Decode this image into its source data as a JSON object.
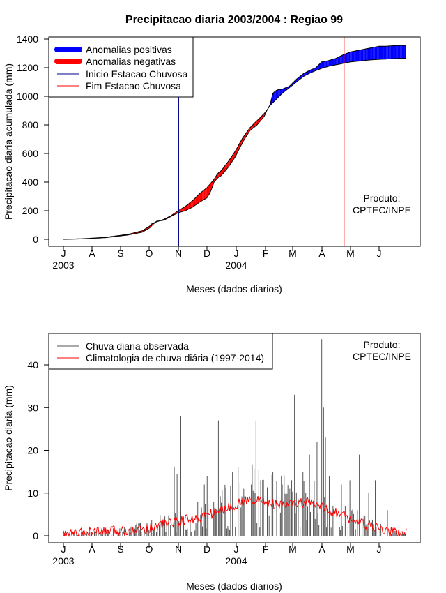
{
  "chart_data": [
    {
      "type": "area",
      "title": "Precipitacao diaria 2003/2004 : Regiao 99",
      "xlabel": "Meses (dados diarios)",
      "ylabel": "Precipitacao diaria acumulada (mm)",
      "ylim": [
        0,
        1400
      ],
      "yticks": [
        0,
        200,
        400,
        600,
        800,
        1000,
        1200,
        1400
      ],
      "month_ticks": [
        "J",
        "A",
        "S",
        "O",
        "N",
        "D",
        "J",
        "F",
        "M",
        "A",
        "M",
        "J"
      ],
      "year_labels": [
        "2003",
        "2004"
      ],
      "legend": [
        {
          "label": "Anomalias positivas",
          "color": "#0000ff"
        },
        {
          "label": "Anomalias negativas",
          "color": "#ff0000"
        },
        {
          "label": "Inicio Estacao Chuvosa",
          "color": "#00008b"
        },
        {
          "label": "Fim Estacao Chuvosa",
          "color": "#ff0000"
        }
      ],
      "note_line1": "Produto:",
      "note_line2": "CPTEC/INPE",
      "rainy_season_start_day": 122,
      "rainy_season_end_day": 297,
      "days_total": 365,
      "observed_cumulative_knots": [
        [
          0,
          0
        ],
        [
          30,
          3
        ],
        [
          60,
          12
        ],
        [
          90,
          30
        ],
        [
          110,
          50
        ],
        [
          121,
          82
        ],
        [
          123,
          95
        ],
        [
          130,
          127
        ],
        [
          140,
          133
        ],
        [
          150,
          160
        ],
        [
          160,
          185
        ],
        [
          170,
          200
        ],
        [
          180,
          225
        ],
        [
          190,
          260
        ],
        [
          200,
          290
        ],
        [
          205,
          330
        ],
        [
          210,
          400
        ],
        [
          215,
          430
        ],
        [
          220,
          445
        ],
        [
          230,
          505
        ],
        [
          240,
          580
        ],
        [
          250,
          680
        ],
        [
          260,
          760
        ],
        [
          270,
          800
        ],
        [
          280,
          860
        ],
        [
          284,
          905
        ],
        [
          288,
          940
        ],
        [
          292,
          1020
        ],
        [
          295,
          1035
        ],
        [
          298,
          1045
        ],
        [
          305,
          1050
        ],
        [
          315,
          1070
        ],
        [
          325,
          1120
        ],
        [
          335,
          1160
        ],
        [
          345,
          1185
        ],
        [
          352,
          1200
        ],
        [
          360,
          1240
        ],
        [
          370,
          1250
        ],
        [
          380,
          1265
        ],
        [
          390,
          1290
        ],
        [
          400,
          1310
        ],
        [
          410,
          1320
        ],
        [
          420,
          1330
        ],
        [
          430,
          1340
        ],
        [
          440,
          1350
        ],
        [
          450,
          1350
        ],
        [
          455,
          1352
        ],
        [
          465,
          1355
        ],
        [
          470,
          1355
        ],
        [
          478,
          1355
        ]
      ],
      "climatology_cumulative_knots": [
        [
          0,
          0
        ],
        [
          30,
          5
        ],
        [
          60,
          15
        ],
        [
          90,
          35
        ],
        [
          110,
          60
        ],
        [
          121,
          95
        ],
        [
          123,
          110
        ],
        [
          130,
          122
        ],
        [
          140,
          140
        ],
        [
          150,
          165
        ],
        [
          160,
          200
        ],
        [
          170,
          230
        ],
        [
          180,
          270
        ],
        [
          190,
          320
        ],
        [
          200,
          360
        ],
        [
          205,
          390
        ],
        [
          210,
          420
        ],
        [
          215,
          460
        ],
        [
          220,
          480
        ],
        [
          230,
          545
        ],
        [
          240,
          620
        ],
        [
          250,
          710
        ],
        [
          260,
          780
        ],
        [
          270,
          830
        ],
        [
          280,
          880
        ],
        [
          284,
          905
        ],
        [
          288,
          935
        ],
        [
          292,
          955
        ],
        [
          295,
          970
        ],
        [
          298,
          985
        ],
        [
          305,
          1020
        ],
        [
          315,
          1060
        ],
        [
          325,
          1100
        ],
        [
          335,
          1140
        ],
        [
          345,
          1165
        ],
        [
          352,
          1180
        ],
        [
          360,
          1195
        ],
        [
          370,
          1210
        ],
        [
          380,
          1220
        ],
        [
          390,
          1230
        ],
        [
          400,
          1240
        ],
        [
          410,
          1245
        ],
        [
          420,
          1250
        ],
        [
          430,
          1255
        ],
        [
          440,
          1258
        ],
        [
          450,
          1260
        ],
        [
          455,
          1262
        ],
        [
          465,
          1264
        ],
        [
          470,
          1265
        ],
        [
          478,
          1266
        ]
      ]
    },
    {
      "type": "line",
      "title": "",
      "xlabel": "Meses (dados diarios)",
      "ylabel": "Precipitacao diaria (mm)",
      "ylim": [
        0,
        45
      ],
      "yticks": [
        0,
        10,
        20,
        30,
        40
      ],
      "month_ticks": [
        "J",
        "A",
        "S",
        "O",
        "N",
        "D",
        "J",
        "F",
        "M",
        "A",
        "M",
        "J"
      ],
      "year_labels": [
        "2003",
        "2004"
      ],
      "legend": [
        {
          "label": "Chuva diaria observada",
          "color": "#555555"
        },
        {
          "label": "Climatologia de chuva diária (1997-2014)",
          "color": "#ff0000"
        }
      ],
      "note_line1": "Produto:",
      "note_line2": "CPTEC/INPE",
      "days_total": 365,
      "notable_peaks": [
        [
          86,
          1.5
        ],
        [
          118,
          16
        ],
        [
          121,
          14.5
        ],
        [
          125,
          28
        ],
        [
          143,
          8
        ],
        [
          150,
          12
        ],
        [
          153,
          14
        ],
        [
          160,
          8
        ],
        [
          165,
          27
        ],
        [
          180,
          15
        ],
        [
          186,
          16
        ],
        [
          192,
          11
        ],
        [
          200,
          12
        ],
        [
          205,
          27
        ],
        [
          210,
          13
        ],
        [
          223,
          15
        ],
        [
          233,
          12
        ],
        [
          241,
          11
        ],
        [
          246,
          33
        ],
        [
          255,
          15
        ],
        [
          262,
          19
        ],
        [
          270,
          22
        ],
        [
          275,
          46
        ],
        [
          277,
          30
        ],
        [
          279,
          23
        ],
        [
          283,
          14
        ],
        [
          296,
          12
        ],
        [
          305,
          13
        ],
        [
          315,
          19
        ],
        [
          325,
          10
        ],
        [
          332,
          13
        ],
        [
          345,
          6
        ]
      ],
      "climatology_knots": [
        [
          0,
          0.3
        ],
        [
          30,
          0.8
        ],
        [
          60,
          1.2
        ],
        [
          90,
          1.8
        ],
        [
          110,
          3
        ],
        [
          125,
          3.5
        ],
        [
          140,
          4
        ],
        [
          155,
          5
        ],
        [
          170,
          6
        ],
        [
          185,
          7.5
        ],
        [
          200,
          8.5
        ],
        [
          215,
          8
        ],
        [
          230,
          7
        ],
        [
          245,
          7.5
        ],
        [
          260,
          7.8
        ],
        [
          270,
          7
        ],
        [
          285,
          6
        ],
        [
          300,
          4.5
        ],
        [
          315,
          3
        ],
        [
          330,
          2
        ],
        [
          345,
          1
        ],
        [
          360,
          0.6
        ],
        [
          365,
          0.5
        ]
      ]
    }
  ]
}
